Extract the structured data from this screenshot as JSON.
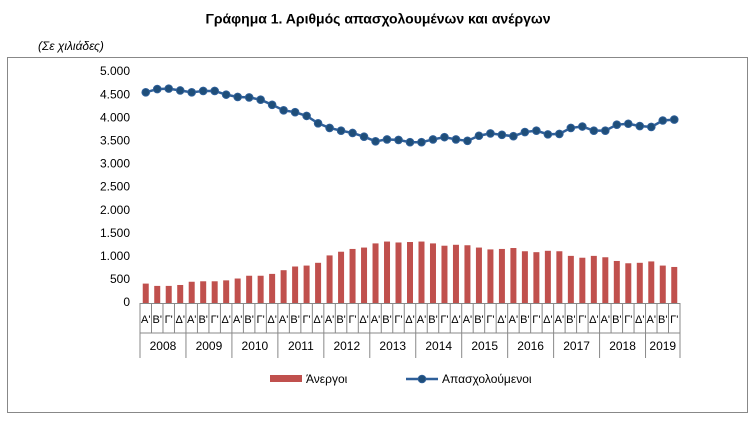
{
  "chart_data": {
    "type": "bar",
    "title": "Γράφημα 1. Αριθμός απασχολουμένων και ανέργων",
    "y_label": "(Σε χιλιάδες)",
    "categories": [
      "Α'",
      "Β'",
      "Γ'",
      "Δ'",
      "Α'",
      "Β'",
      "Γ'",
      "Δ'",
      "Α'",
      "Β'",
      "Γ'",
      "Δ'",
      "Α'",
      "Β'",
      "Γ'",
      "Δ'",
      "Α'",
      "Β'",
      "Γ'",
      "Δ'",
      "Α'",
      "Β'",
      "Γ'",
      "Δ'",
      "Α'",
      "Β'",
      "Γ'",
      "Δ'",
      "Α'",
      "Β'",
      "Γ'",
      "Δ'",
      "Α'",
      "Β'",
      "Γ'",
      "Δ'",
      "Α'",
      "Β'",
      "Γ'",
      "Δ'",
      "Α'",
      "Β'",
      "Γ'",
      "Δ'",
      "Α'",
      "Β'",
      "Γ'"
    ],
    "category_groups": [
      "2008",
      "2009",
      "2010",
      "2011",
      "2012",
      "2013",
      "2014",
      "2015",
      "2016",
      "2017",
      "2018",
      "2019"
    ],
    "series": [
      {
        "name": "Άνεργοι",
        "type": "bar",
        "color": "#c0504d",
        "values": [
          420,
          370,
          370,
          390,
          460,
          470,
          470,
          490,
          530,
          590,
          590,
          630,
          710,
          790,
          810,
          870,
          1030,
          1110,
          1170,
          1200,
          1290,
          1330,
          1310,
          1320,
          1330,
          1290,
          1240,
          1260,
          1250,
          1200,
          1160,
          1170,
          1190,
          1120,
          1100,
          1130,
          1120,
          1020,
          980,
          1020,
          990,
          910,
          860,
          870,
          900,
          810,
          780
        ]
      },
      {
        "name": "Απασχολούμενοι",
        "type": "line",
        "color": "#2e5f99",
        "values": [
          4560,
          4630,
          4640,
          4600,
          4560,
          4590,
          4590,
          4510,
          4460,
          4450,
          4400,
          4290,
          4170,
          4130,
          4050,
          3890,
          3790,
          3730,
          3680,
          3600,
          3500,
          3540,
          3530,
          3480,
          3480,
          3540,
          3590,
          3540,
          3510,
          3620,
          3670,
          3640,
          3610,
          3700,
          3730,
          3650,
          3660,
          3790,
          3820,
          3730,
          3730,
          3860,
          3880,
          3830,
          3810,
          3950,
          3970
        ]
      }
    ],
    "ylim": [
      0,
      5000
    ],
    "yticks": [
      0,
      500,
      {
        "value": 1000,
        "label": "1.000"
      },
      {
        "value": 1500,
        "label": "1.500"
      },
      {
        "value": 2000,
        "label": "2.000"
      },
      {
        "value": 2500,
        "label": "2.500"
      },
      {
        "value": 3000,
        "label": "3.000"
      },
      {
        "value": 3500,
        "label": "3.500"
      },
      {
        "value": 4000,
        "label": "4.000"
      },
      {
        "value": 4500,
        "label": "4.500"
      },
      {
        "value": 5000,
        "label": "5.000"
      }
    ],
    "grid": false,
    "legend": "bottom"
  }
}
